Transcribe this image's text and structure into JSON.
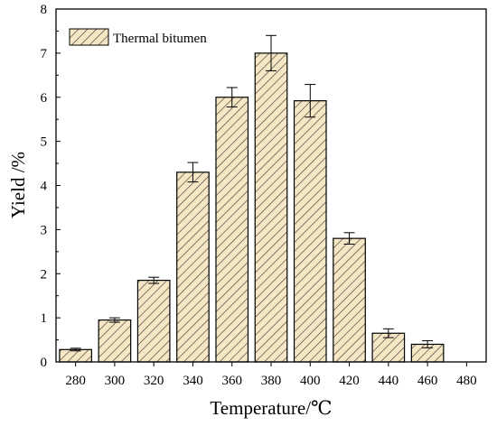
{
  "chart_data": {
    "type": "bar",
    "title": "",
    "xlabel": "Temperature/℃",
    "ylabel": "Yield /%",
    "categories": [
      "280",
      "300",
      "320",
      "340",
      "360",
      "380",
      "400",
      "420",
      "440",
      "460",
      "480"
    ],
    "series": [
      {
        "name": "Thermal bitumen",
        "values": [
          0.28,
          0.95,
          1.85,
          4.3,
          6.0,
          7.0,
          5.92,
          2.8,
          0.65,
          0.4,
          0
        ],
        "errors": [
          0.03,
          0.05,
          0.07,
          0.22,
          0.22,
          0.4,
          0.37,
          0.13,
          0.1,
          0.08,
          0
        ]
      }
    ],
    "ylim": [
      0,
      8
    ],
    "yticks": [
      "0",
      "1",
      "2",
      "3",
      "4",
      "5",
      "6",
      "7",
      "8"
    ],
    "legend_position": "top-left",
    "grid": false,
    "colors": {
      "bar_fill": "#f5e6c4",
      "hatch": "#333333",
      "edge": "#000000"
    }
  }
}
